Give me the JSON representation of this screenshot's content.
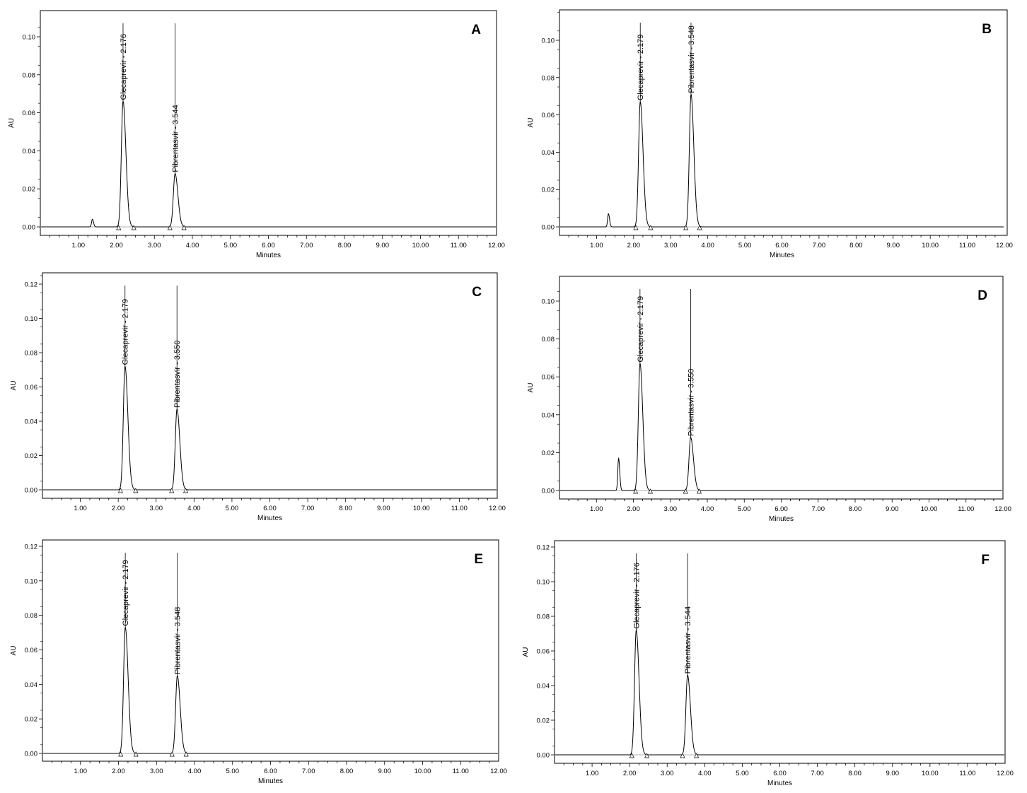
{
  "chart_data": [
    {
      "type": "line",
      "panel": "A",
      "xlabel": "Minutes",
      "ylabel": "AU",
      "xlim": [
        0,
        12
      ],
      "ylim": [
        -0.006,
        0.11
      ],
      "xticks": [
        "1.00",
        "2.00",
        "3.00",
        "4.00",
        "5.00",
        "6.00",
        "7.00",
        "8.00",
        "9.00",
        "10.00",
        "11.00",
        "12.00"
      ],
      "yticks": [
        "0.00",
        "0.02",
        "0.04",
        "0.06",
        "0.08",
        "0.10"
      ],
      "small_peaks": [
        {
          "rt": 1.37,
          "height": 0.004
        }
      ],
      "peaks": [
        {
          "label": "Glecaprevir - 2.176",
          "rt": 2.176,
          "height": 0.066
        },
        {
          "label": "Pibrentasvir - 3.544",
          "rt": 3.544,
          "height": 0.028
        }
      ],
      "markers": [
        2.06,
        2.46,
        3.41,
        3.78
      ]
    },
    {
      "type": "line",
      "panel": "B",
      "xlabel": "Minutes",
      "ylabel": "AU",
      "xlim": [
        0,
        12
      ],
      "ylim": [
        -0.006,
        0.115
      ],
      "xticks": [
        "1.00",
        "2.00",
        "3.00",
        "4.00",
        "5.00",
        "6.00",
        "7.00",
        "8.00",
        "9.00",
        "10.00",
        "11.00",
        "12.00"
      ],
      "yticks": [
        "0.00",
        "0.02",
        "0.04",
        "0.06",
        "0.08",
        "0.10"
      ],
      "small_peaks": [
        {
          "rt": 1.32,
          "height": 0.007
        }
      ],
      "peaks": [
        {
          "label": "Glecaprevir - 2.179",
          "rt": 2.179,
          "height": 0.067
        },
        {
          "label": "Pibrentasvir - 3.548",
          "rt": 3.548,
          "height": 0.071
        }
      ],
      "markers": [
        2.06,
        2.46,
        3.41,
        3.78
      ]
    },
    {
      "type": "line",
      "panel": "C",
      "xlabel": "Minutes",
      "ylabel": "AU",
      "xlim": [
        0,
        12
      ],
      "ylim": [
        -0.006,
        0.125
      ],
      "xticks": [
        "1.00",
        "2.00",
        "3.00",
        "4.00",
        "5.00",
        "6.00",
        "7.00",
        "8.00",
        "9.00",
        "10.00",
        "11.00",
        "12.00"
      ],
      "yticks": [
        "0.00",
        "0.02",
        "0.04",
        "0.06",
        "0.08",
        "0.10",
        "0.12"
      ],
      "small_peaks": [],
      "peaks": [
        {
          "label": "Glecaprevir - 2.179",
          "rt": 2.179,
          "height": 0.072
        },
        {
          "label": "Pibrentasvir - 3.550",
          "rt": 3.55,
          "height": 0.047
        }
      ],
      "markers": [
        2.06,
        2.46,
        3.41,
        3.78
      ]
    },
    {
      "type": "line",
      "panel": "D",
      "xlabel": "Minutes",
      "ylabel": "AU",
      "xlim": [
        0,
        12
      ],
      "ylim": [
        -0.006,
        0.11
      ],
      "xticks": [
        "1.00",
        "2.00",
        "3.00",
        "4.00",
        "5.00",
        "6.00",
        "7.00",
        "8.00",
        "9.00",
        "10.00",
        "11.00",
        "12.00"
      ],
      "yticks": [
        "0.00",
        "0.02",
        "0.04",
        "0.06",
        "0.08",
        "0.10"
      ],
      "small_peaks": [
        {
          "rt": 1.6,
          "height": 0.017
        }
      ],
      "peaks": [
        {
          "label": "Glecaprevir - 2.179",
          "rt": 2.179,
          "height": 0.067
        },
        {
          "label": "Pibrentasvir - 3.550",
          "rt": 3.55,
          "height": 0.028
        }
      ],
      "markers": [
        2.06,
        2.46,
        3.41,
        3.78
      ]
    },
    {
      "type": "line",
      "panel": "E",
      "xlabel": "Minutes",
      "ylabel": "AU",
      "xlim": [
        0,
        12
      ],
      "ylim": [
        -0.006,
        0.125
      ],
      "xticks": [
        "1.00",
        "2.00",
        "3.00",
        "4.00",
        "5.00",
        "6.00",
        "7.00",
        "8.00",
        "9.00",
        "10.00",
        "11.00",
        "12.00"
      ],
      "yticks": [
        "0.00",
        "0.02",
        "0.04",
        "0.06",
        "0.08",
        "0.10",
        "0.12"
      ],
      "small_peaks": [],
      "peaks": [
        {
          "label": "Glecaprevir - 2.179",
          "rt": 2.179,
          "height": 0.073
        },
        {
          "label": "Pibrentasvir - 3.548",
          "rt": 3.548,
          "height": 0.045
        }
      ],
      "markers": [
        2.06,
        2.46,
        3.41,
        3.78
      ]
    },
    {
      "type": "line",
      "panel": "F",
      "xlabel": "Minutes",
      "ylabel": "AU",
      "xlim": [
        0,
        12
      ],
      "ylim": [
        -0.006,
        0.125
      ],
      "xticks": [
        "1.00",
        "2.00",
        "3.00",
        "4.00",
        "5.00",
        "6.00",
        "7.00",
        "8.00",
        "9.00",
        "10.00",
        "11.00",
        "12.00"
      ],
      "yticks": [
        "0.00",
        "0.02",
        "0.04",
        "0.06",
        "0.08",
        "0.10",
        "0.12"
      ],
      "small_peaks": [],
      "peaks": [
        {
          "label": "Glecaprevir - 2.176",
          "rt": 2.176,
          "height": 0.072
        },
        {
          "label": "Pibrentasvir - 3.544",
          "rt": 3.544,
          "height": 0.046
        }
      ],
      "markers": [
        2.06,
        2.46,
        3.41,
        3.78
      ]
    }
  ]
}
